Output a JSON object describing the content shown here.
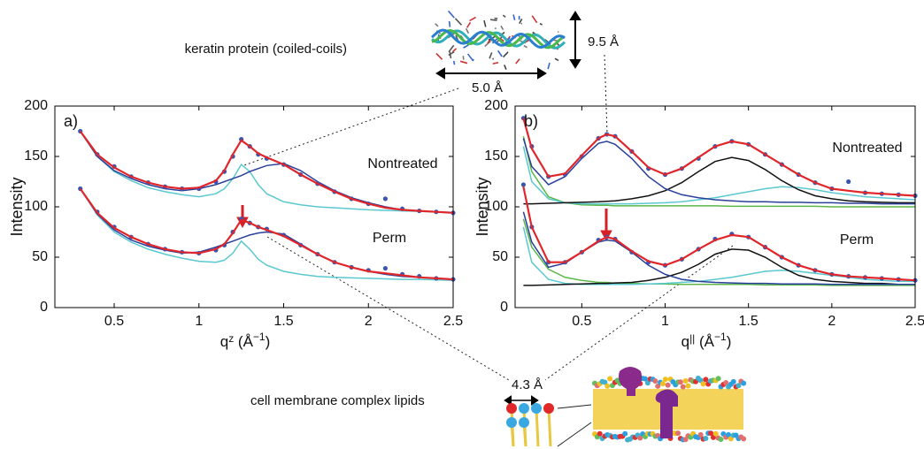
{
  "chart_data": [
    {
      "type": "line",
      "panel": "a)",
      "ylabel": "Intensity",
      "xlabel": [
        "q",
        "z",
        " (Å",
        "−1",
        ")"
      ],
      "state_labels": [
        "Nontreated",
        "Perm"
      ],
      "xlim": [
        0.15,
        2.5
      ],
      "ylim": [
        0,
        200
      ],
      "xticks": [
        0.5,
        1,
        1.5,
        2,
        2.5
      ],
      "yticks": [
        0,
        50,
        100,
        150,
        200
      ],
      "x": [
        0.3,
        0.4,
        0.5,
        0.6,
        0.7,
        0.8,
        0.9,
        1.0,
        1.1,
        1.15,
        1.2,
        1.25,
        1.3,
        1.35,
        1.4,
        1.5,
        1.6,
        1.7,
        1.8,
        1.9,
        2.0,
        2.1,
        2.2,
        2.3,
        2.4,
        2.5
      ],
      "series": [
        {
          "style": "line",
          "color": "#5bc8d0",
          "values": [
            175,
            150,
            135,
            126,
            119,
            115,
            112,
            110,
            113,
            118,
            128,
            142,
            135,
            122,
            113,
            105,
            102,
            100,
            99,
            98,
            97,
            96.5,
            96,
            95.5,
            95,
            94.5
          ]
        },
        {
          "style": "line",
          "color": "#2a3f9a",
          "values": [
            175,
            150,
            136,
            128,
            122,
            118,
            116,
            118,
            122,
            125,
            128,
            131,
            135,
            138,
            141,
            143,
            136,
            125,
            116,
            109,
            104,
            100,
            97,
            96,
            95,
            94
          ]
        },
        {
          "style": "dots",
          "color": "#3a56b0",
          "values": [
            175,
            152,
            140,
            130,
            124,
            120,
            118,
            118,
            125,
            135,
            150,
            167,
            160,
            152,
            148,
            142,
            132,
            123,
            115,
            108,
            103,
            108,
            98,
            96,
            95,
            94
          ]
        },
        {
          "style": "line",
          "color": "#e0262b",
          "values": [
            175,
            152,
            139,
            130,
            124,
            120,
            118,
            119,
            126,
            136,
            152,
            166,
            160,
            153,
            149,
            142,
            132,
            123,
            115,
            108,
            103,
            99,
            97,
            96,
            95,
            94
          ]
        },
        {
          "style": "line",
          "color": "#5bc8d0",
          "values": [
            118,
            92,
            75,
            65,
            58,
            53,
            49,
            46,
            45,
            47,
            54,
            66,
            58,
            48,
            42,
            36,
            33,
            31,
            30,
            29.5,
            29,
            28.5,
            28,
            28,
            27.5,
            27
          ]
        },
        {
          "style": "line",
          "color": "#2a3f9a",
          "values": [
            118,
            93,
            77,
            67,
            61,
            57,
            54,
            55,
            60,
            63,
            66,
            69,
            72,
            74,
            75,
            73,
            63,
            53,
            45,
            40,
            36,
            33,
            31,
            30,
            29,
            28
          ]
        },
        {
          "style": "dots",
          "color": "#3a56b0",
          "values": [
            118,
            95,
            80,
            70,
            63,
            58,
            55,
            54,
            57,
            62,
            75,
            88,
            84,
            80,
            78,
            72,
            62,
            53,
            45,
            40,
            37,
            39,
            33,
            31,
            29,
            28
          ]
        },
        {
          "style": "line",
          "color": "#e0262b",
          "values": [
            118,
            94,
            79,
            70,
            63,
            58,
            55,
            54,
            58,
            63,
            74,
            87,
            84,
            80,
            77,
            71,
            62,
            53,
            45,
            40,
            36,
            34,
            32,
            30,
            29,
            28
          ]
        }
      ]
    },
    {
      "type": "line",
      "panel": "b)",
      "ylabel": "Intensity",
      "xlabel": [
        "q",
        "||",
        " (Å",
        "−1",
        ")"
      ],
      "state_labels": [
        "Nontreated",
        "Perm"
      ],
      "xlim": [
        0.1,
        2.5
      ],
      "ylim": [
        0,
        200
      ],
      "xticks": [
        0.5,
        1,
        1.5,
        2,
        2.5
      ],
      "yticks": [
        0,
        50,
        100,
        150,
        200
      ],
      "x": [
        0.15,
        0.2,
        0.3,
        0.4,
        0.5,
        0.6,
        0.65,
        0.7,
        0.8,
        0.9,
        1.0,
        1.1,
        1.2,
        1.3,
        1.4,
        1.5,
        1.6,
        1.7,
        1.8,
        1.9,
        2.0,
        2.1,
        2.2,
        2.3,
        2.4,
        2.5
      ],
      "series": [
        {
          "style": "line",
          "color": "#5bb848",
          "values": [
            170,
            135,
            110,
            104,
            102,
            101.5,
            101.5,
            101,
            101,
            101,
            101,
            101,
            101,
            101,
            100.5,
            100.5,
            100.5,
            100.5,
            100.5,
            100.5,
            100,
            100,
            100,
            100,
            100,
            100
          ]
        },
        {
          "style": "line",
          "color": "#5bc8d0",
          "values": [
            160,
            125,
            108,
            104,
            103,
            103,
            103,
            103,
            103,
            103.5,
            104,
            105,
            107,
            109,
            112,
            115,
            118,
            120,
            119,
            117,
            114,
            112,
            110,
            109,
            108,
            107
          ]
        },
        {
          "style": "line",
          "color": "#111111",
          "values": [
            103,
            103,
            103.5,
            104,
            104.5,
            105,
            105.5,
            106,
            108,
            111,
            116,
            124,
            135,
            145,
            149,
            146,
            137,
            126,
            117,
            111,
            108,
            106,
            105,
            104.5,
            104,
            104
          ]
        },
        {
          "style": "line",
          "color": "#2a3f9a",
          "values": [
            168,
            140,
            122,
            130,
            148,
            163,
            165,
            162,
            148,
            130,
            118,
            112,
            109,
            107,
            106,
            105,
            105,
            104.5,
            104.5,
            104,
            104,
            103.5,
            103.5,
            103,
            103,
            103
          ]
        },
        {
          "style": "dots",
          "color": "#3a56b0",
          "values": [
            188,
            160,
            130,
            132,
            150,
            168,
            172,
            170,
            155,
            138,
            132,
            138,
            148,
            160,
            165,
            162,
            152,
            142,
            132,
            124,
            118,
            125,
            114,
            113,
            112,
            111
          ]
        },
        {
          "style": "line",
          "color": "#e0262b",
          "values": [
            188,
            158,
            130,
            133,
            151,
            168,
            172,
            170,
            155,
            139,
            132,
            138,
            149,
            160,
            165,
            162,
            152,
            142,
            132,
            124,
            118,
            116,
            114,
            113,
            112,
            111
          ]
        },
        {
          "style": "line",
          "color": "#5bb848",
          "values": [
            88,
            60,
            38,
            30,
            27,
            25,
            25,
            24,
            24,
            23.5,
            23.5,
            23,
            23,
            23,
            23,
            23,
            22.5,
            22.5,
            22.5,
            22.5,
            22,
            22,
            22,
            22,
            22,
            22
          ]
        },
        {
          "style": "line",
          "color": "#5bc8d0",
          "values": [
            80,
            45,
            28,
            24,
            23,
            23,
            23,
            23,
            23,
            23.5,
            24,
            25,
            26,
            28,
            30,
            33,
            36,
            37,
            36,
            34,
            32,
            30,
            28,
            27,
            26,
            26
          ]
        },
        {
          "style": "line",
          "color": "#111111",
          "values": [
            22,
            22,
            22.5,
            23,
            23.5,
            24,
            24,
            24.5,
            25,
            27,
            30,
            35,
            43,
            53,
            58,
            57,
            50,
            40,
            32,
            28,
            26,
            25,
            24,
            24,
            23,
            23
          ]
        },
        {
          "style": "line",
          "color": "#2a3f9a",
          "values": [
            95,
            65,
            40,
            44,
            55,
            65,
            67,
            66,
            55,
            42,
            33,
            28,
            26,
            25,
            24.5,
            24,
            24,
            23.5,
            23.5,
            23.5,
            23,
            23,
            23,
            23,
            23,
            23
          ]
        },
        {
          "style": "dots",
          "color": "#3a56b0",
          "values": [
            122,
            80,
            45,
            45,
            55,
            67,
            70,
            68,
            55,
            45,
            42,
            48,
            58,
            68,
            73,
            70,
            60,
            50,
            42,
            37,
            33,
            31,
            30,
            29,
            28,
            27
          ]
        },
        {
          "style": "line",
          "color": "#e0262b",
          "values": [
            120,
            80,
            45,
            45,
            55,
            66,
            70,
            68,
            56,
            46,
            42,
            48,
            58,
            67,
            72,
            70,
            60,
            50,
            42,
            37,
            33,
            31,
            30,
            29,
            28,
            27
          ]
        }
      ]
    }
  ],
  "figure_annotations": {
    "protein_label": "keratin protein (coiled-coils)",
    "protein_height": "9.5 Å",
    "protein_length": "5.0 Å",
    "lipid_label": "cell membrane complex lipids",
    "lipid_spacing": "4.3 Å"
  }
}
